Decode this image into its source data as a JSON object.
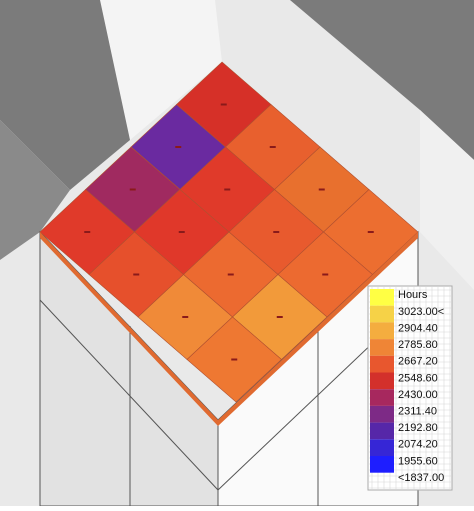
{
  "legend": {
    "title": "Hours",
    "labels": [
      "3023.00<",
      "2904.40",
      "2785.80",
      "2667.20",
      "2548.60",
      "2430.00",
      "2311.40",
      "2192.80",
      "2074.20",
      "1955.60",
      "<1837.00"
    ],
    "colors": [
      "#ffff44",
      "#f6d247",
      "#f4ad3f",
      "#ef8536",
      "#e8572e",
      "#d3302b",
      "#a7285e",
      "#7d2a86",
      "#5627a8",
      "#3626d6",
      "#1e1eff"
    ]
  }
}
